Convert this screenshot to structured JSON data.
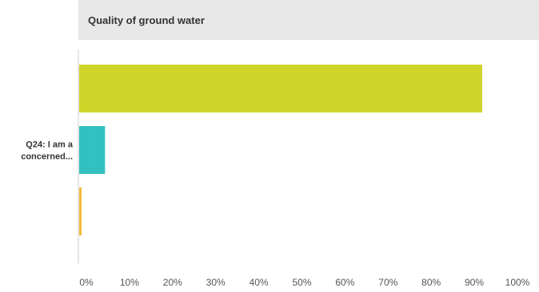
{
  "chart_data": {
    "type": "bar",
    "orientation": "horizontal",
    "title": "Quality of ground water",
    "categories": [
      "Q24: I am a concerned..."
    ],
    "category_label_lines": [
      "Q24: I am a",
      "concerned..."
    ],
    "series": [
      {
        "values": [
          93.5
        ],
        "color": "#cfd42a"
      },
      {
        "values": [
          6.0
        ],
        "color": "#33c0c0"
      },
      {
        "values": [
          0.5
        ],
        "color": "#f5b83a"
      }
    ],
    "xlim": [
      0,
      100
    ],
    "x_ticks": [
      0,
      10,
      20,
      30,
      40,
      50,
      60,
      70,
      80,
      90,
      100
    ],
    "x_tick_labels": [
      "0%",
      "10%",
      "20%",
      "30%",
      "40%",
      "50%",
      "60%",
      "70%",
      "80%",
      "90%",
      "100%"
    ],
    "grid": false,
    "legend": "none"
  },
  "colors": {
    "title_band": "#e8e8e8",
    "axis": "#cccccc"
  }
}
